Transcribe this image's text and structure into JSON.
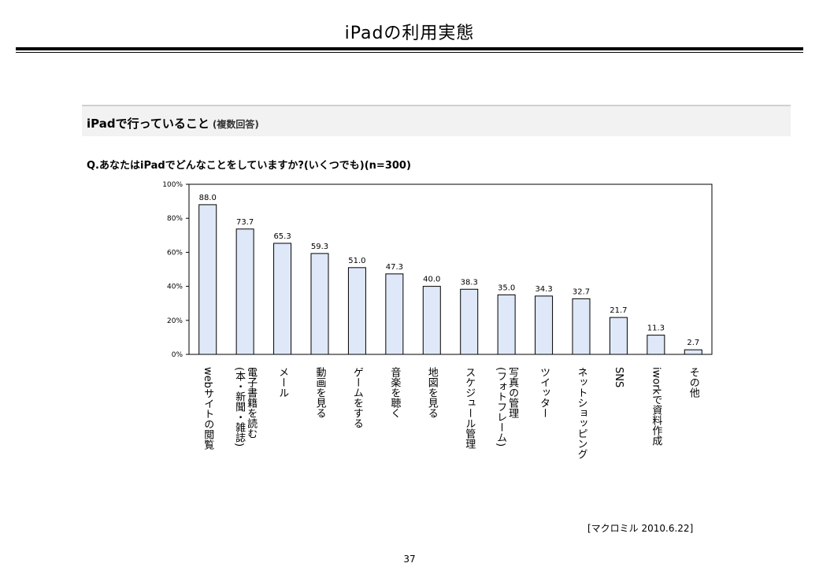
{
  "slide": {
    "title": "iPadの利用実態",
    "section_heading": "iPadで行っていること",
    "section_sub": "(複数回答)",
    "question": "Q.あなたはiPadでどんなことをしていますか?(いくつでも)(n=300)",
    "source": "[マクロミル 2010.6.22]",
    "page_number": "37"
  },
  "chart_data": {
    "type": "bar",
    "title": "",
    "xlabel": "",
    "ylabel": "",
    "ylim": [
      0,
      100
    ],
    "yticks": [
      "0%",
      "20%",
      "40%",
      "60%",
      "80%",
      "100%"
    ],
    "grid": false,
    "legend": "none",
    "bar_color": "#dfe8f8",
    "bar_edge_color": "#000000",
    "categories": [
      "webサイトの閲覧",
      "電子書籍を読む(本・新聞・雑誌)",
      "メール",
      "動画を見る",
      "ゲームをする",
      "音楽を聴く",
      "地図を見る",
      "スケジュール管理",
      "写真の管理(フォトフレーム)",
      "ツイッター",
      "ネットショッピング",
      "SNS",
      "iworkで資料作成",
      "その他"
    ],
    "label_columns": [
      [
        "webサイトの閲覧"
      ],
      [
        "電子書籍を読む",
        "(本・新聞・雑誌)"
      ],
      [
        "メール"
      ],
      [
        "動画を見る"
      ],
      [
        "ゲームをする"
      ],
      [
        "音楽を聴く"
      ],
      [
        "地図を見る"
      ],
      [
        "スケジュール管理"
      ],
      [
        "写真の管理",
        "(フォトフレーム)"
      ],
      [
        "ツイッター"
      ],
      [
        "ネットショッピング"
      ],
      [
        "SNS"
      ],
      [
        "iworkで資料作成"
      ],
      [
        "その他"
      ]
    ],
    "values": [
      88.0,
      73.7,
      65.3,
      59.3,
      51.0,
      47.3,
      40.0,
      38.3,
      35.0,
      34.3,
      32.7,
      21.7,
      11.3,
      2.7
    ],
    "value_labels": [
      "88.0",
      "73.7",
      "65.3",
      "59.3",
      "51.0",
      "47.3",
      "40.0",
      "38.3",
      "35.0",
      "34.3",
      "32.7",
      "21.7",
      "11.3",
      "2.7"
    ]
  }
}
